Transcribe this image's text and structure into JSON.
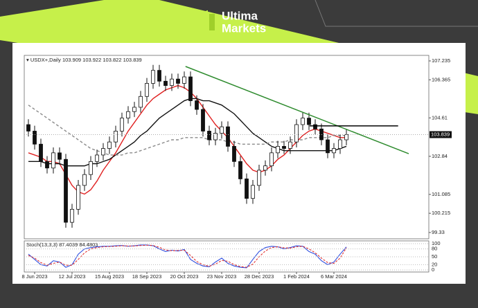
{
  "brand": {
    "line1": "Ultima",
    "line2": "Markets"
  },
  "chart_data": {
    "type": "candlestick",
    "title": "USDX+,Daily",
    "last_ohlc": [
      103.909,
      103.922,
      103.822,
      103.839
    ],
    "last_price": 103.839,
    "categories": [
      null,
      "8 Jun 2023",
      null,
      null,
      null,
      null,
      null,
      "12 Jul 2023",
      null,
      null,
      null,
      null,
      null,
      "15 Aug 2023",
      null,
      null,
      null,
      null,
      null,
      "18 Sep 2023",
      null,
      null,
      null,
      null,
      null,
      "20 Oct 2023",
      null,
      null,
      null,
      null,
      null,
      "23 Nov 2023",
      null,
      null,
      null,
      null,
      null,
      "28 Dec 2023",
      null,
      null,
      null,
      null,
      null,
      "1 Feb 2024",
      null,
      null,
      null,
      null,
      null,
      "6 Mar 2024",
      null,
      null
    ],
    "open": [
      104.3,
      104.0,
      103.4,
      102.6,
      102.3,
      103.0,
      102.7,
      99.8,
      100.4,
      101.5,
      102.0,
      102.6,
      102.9,
      103.2,
      103.5,
      104.0,
      104.6,
      104.9,
      105.1,
      105.6,
      106.2,
      106.8,
      106.3,
      106.1,
      106.4,
      106.2,
      106.5,
      105.4,
      105.0,
      104.0,
      103.6,
      103.9,
      104.2,
      103.3,
      102.6,
      101.8,
      100.9,
      101.5,
      102.2,
      102.4,
      103.0,
      103.3,
      103.2,
      103.5,
      104.3,
      104.6,
      104.3,
      104.1,
      103.6,
      103.0,
      103.2,
      103.6
    ],
    "high": [
      104.55,
      104.25,
      103.65,
      102.85,
      103.25,
      103.25,
      102.95,
      100.65,
      101.75,
      102.25,
      102.85,
      103.15,
      103.45,
      103.75,
      104.25,
      104.85,
      105.15,
      105.35,
      105.85,
      106.45,
      107.05,
      107.05,
      106.55,
      106.65,
      106.65,
      106.75,
      106.75,
      105.65,
      105.25,
      104.25,
      104.15,
      104.45,
      104.45,
      103.55,
      102.85,
      102.05,
      101.75,
      102.45,
      102.65,
      103.25,
      103.55,
      103.55,
      103.75,
      104.55,
      104.85,
      104.85,
      104.55,
      104.35,
      103.85,
      103.45,
      103.85,
      104.1
    ],
    "low": [
      103.75,
      103.15,
      102.35,
      102.05,
      102.05,
      102.45,
      99.55,
      99.55,
      100.15,
      101.25,
      101.75,
      102.35,
      102.65,
      102.95,
      103.25,
      103.75,
      104.35,
      104.65,
      104.85,
      105.35,
      105.95,
      106.05,
      105.85,
      105.85,
      105.95,
      105.95,
      105.15,
      104.75,
      103.75,
      103.35,
      103.35,
      103.65,
      103.05,
      102.35,
      101.55,
      100.65,
      100.65,
      101.25,
      101.95,
      102.15,
      102.75,
      102.95,
      102.95,
      103.25,
      104.05,
      104.05,
      103.85,
      103.35,
      102.75,
      102.75,
      102.95,
      103.35
    ],
    "close": [
      104.0,
      103.4,
      102.6,
      102.3,
      103.0,
      102.7,
      99.8,
      100.4,
      101.5,
      102.0,
      102.6,
      102.9,
      103.2,
      103.5,
      104.0,
      104.6,
      104.9,
      105.1,
      105.6,
      106.2,
      106.8,
      106.3,
      106.1,
      106.4,
      106.2,
      106.5,
      105.4,
      105.0,
      104.0,
      103.6,
      103.9,
      104.2,
      103.3,
      102.6,
      101.8,
      100.9,
      101.5,
      102.2,
      102.4,
      103.0,
      103.3,
      103.2,
      103.5,
      104.3,
      104.6,
      104.3,
      104.1,
      103.6,
      103.0,
      103.2,
      103.6,
      103.839
    ],
    "series": [
      {
        "color": "#e02020",
        "values": [
          103.0,
          102.9,
          102.8,
          102.6,
          102.6,
          102.5,
          102.0,
          101.5,
          101.2,
          101.1,
          101.3,
          101.7,
          102.2,
          102.6,
          103.0,
          103.5,
          104.0,
          104.4,
          104.8,
          105.2,
          105.5,
          105.7,
          105.9,
          106.0,
          106.1,
          106.0,
          105.8,
          105.5,
          105.1,
          104.7,
          104.3,
          104.0,
          103.7,
          103.3,
          102.9,
          102.5,
          102.2,
          102.1,
          102.2,
          102.4,
          102.7,
          102.9,
          103.2,
          103.5,
          103.8,
          104.0,
          104.1,
          104.0,
          103.9,
          103.8,
          103.7,
          103.7
        ]
      },
      {
        "color": "#111111",
        "values": [
          102.6,
          102.6,
          102.6,
          102.5,
          102.5,
          102.5,
          102.4,
          102.4,
          102.4,
          102.4,
          102.5,
          102.5,
          102.6,
          102.7,
          102.9,
          103.1,
          103.3,
          103.5,
          103.8,
          104.0,
          104.3,
          104.6,
          104.8,
          105.0,
          105.2,
          105.4,
          105.5,
          105.5,
          105.4,
          105.4,
          105.3,
          105.2,
          105.0,
          104.8,
          104.5,
          104.2,
          103.9,
          103.7,
          103.5,
          103.3,
          103.2,
          103.1,
          103.1,
          103.1,
          103.1,
          103.1,
          103.1,
          103.1,
          103.1,
          103.1,
          103.2,
          103.3
        ]
      },
      {
        "color": "#8a8a8a",
        "dashed": true,
        "values": [
          105.2,
          105.0,
          104.8,
          104.6,
          104.4,
          104.2,
          104.0,
          103.8,
          103.6,
          103.4,
          103.2,
          103.1,
          103.0,
          102.9,
          102.9,
          102.9,
          103.0,
          103.0,
          103.1,
          103.2,
          103.3,
          103.4,
          103.5,
          103.6,
          103.6,
          103.7,
          103.7,
          103.7,
          103.7,
          103.6,
          103.6,
          103.6,
          103.5,
          103.5,
          103.4,
          103.4,
          103.4,
          103.4,
          103.4,
          103.5,
          103.5,
          103.5,
          103.6,
          103.6,
          103.6,
          103.7,
          103.7,
          103.7,
          103.7,
          103.8,
          103.8,
          103.8
        ]
      }
    ],
    "lines": [
      {
        "color": "#2e8b2e",
        "x": [
          25.2,
          61
        ],
        "y": [
          106.98,
          102.96
        ]
      },
      {
        "color": "#000000",
        "x": [
          45.1,
          59.3
        ],
        "y": [
          104.24,
          104.24
        ]
      }
    ],
    "ylim": [
      99.04,
      107.49
    ],
    "yticks": [
      107.235,
      106.365,
      104.61,
      102.84,
      101.085,
      100.215,
      99.33
    ],
    "grid": false,
    "indicator": {
      "title": "Stoch(13,3,3)",
      "ylim": [
        0,
        100
      ],
      "yticks": [
        100,
        80,
        50,
        20,
        0
      ],
      "series": [
        {
          "color": "#3050e0",
          "values": [
            60,
            40,
            20,
            15,
            35,
            30,
            10,
            20,
            60,
            80,
            85,
            88,
            90,
            90,
            92,
            93,
            90,
            92,
            95,
            95,
            92,
            80,
            70,
            75,
            72,
            78,
            40,
            25,
            15,
            12,
            30,
            45,
            25,
            15,
            10,
            8,
            40,
            70,
            85,
            90,
            88,
            80,
            85,
            92,
            90,
            70,
            60,
            35,
            20,
            30,
            60,
            87.4039
          ]
        },
        {
          "color": "#e03030",
          "dashed": true,
          "values": [
            55,
            45,
            28,
            18,
            25,
            30,
            18,
            18,
            40,
            65,
            80,
            85,
            88,
            89,
            90,
            92,
            91,
            91,
            93,
            94,
            93,
            86,
            76,
            73,
            74,
            75,
            55,
            32,
            20,
            14,
            22,
            36,
            33,
            20,
            13,
            10,
            22,
            50,
            72,
            85,
            88,
            84,
            83,
            88,
            90,
            80,
            65,
            45,
            28,
            25,
            45,
            84.4803
          ]
        }
      ]
    }
  }
}
